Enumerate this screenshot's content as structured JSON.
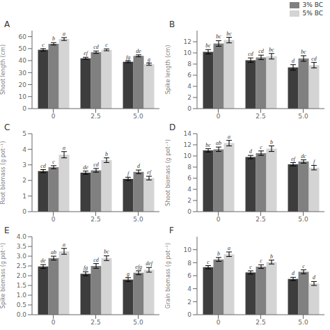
{
  "chart_data": [
    {
      "type": "bar",
      "title": "A",
      "y_label": "Shoot length (cm)",
      "categories": [
        "0",
        "2.5",
        "5.0"
      ],
      "ylim": [
        0,
        65
      ],
      "yticks": [
        0,
        10,
        20,
        30,
        40,
        50,
        60
      ],
      "grid": false,
      "legend": false,
      "series": [
        {
          "color": "#3d3d3d",
          "values": [
            49,
            42,
            39
          ],
          "errors": [
            1.0,
            0.8,
            0.7
          ],
          "annotations": [
            "c",
            "ef",
            "fg"
          ]
        },
        {
          "name": "3% BC",
          "color": "#808080",
          "values": [
            54,
            47,
            44
          ],
          "errors": [
            1.0,
            1.0,
            0.8
          ],
          "annotations": [
            "b",
            "cd",
            "de"
          ]
        },
        {
          "name": "5% BC",
          "color": "#d4d4d4",
          "values": [
            58,
            49,
            37
          ],
          "errors": [
            1.2,
            0.8,
            0.9
          ],
          "annotations": [
            "a",
            "c",
            "g"
          ]
        }
      ]
    },
    {
      "type": "bar",
      "title": "B",
      "y_label": "Spike length (cm)",
      "categories": [
        "0",
        "2.5",
        "5.0"
      ],
      "ylim": [
        0,
        14
      ],
      "yticks": [
        0,
        2,
        4,
        6,
        8,
        10,
        12
      ],
      "grid": false,
      "legend": "upper right",
      "series": [
        {
          "color": "#3d3d3d",
          "values": [
            10.2,
            8.7,
            7.4
          ],
          "errors": [
            0.4,
            0.4,
            0.5
          ],
          "annotations": [
            "bc",
            "cd",
            "d"
          ]
        },
        {
          "name": "3% BC",
          "color": "#808080",
          "values": [
            11.7,
            9.2,
            9.0
          ],
          "errors": [
            0.5,
            0.4,
            0.5
          ],
          "annotations": [
            "bc",
            "cd",
            "bc"
          ]
        },
        {
          "name": "5% BC",
          "color": "#d4d4d4",
          "values": [
            12.3,
            9.4,
            7.8
          ],
          "errors": [
            0.5,
            0.5,
            0.5
          ],
          "annotations": [
            "bc",
            "bc",
            "cd"
          ]
        }
      ]
    },
    {
      "type": "bar",
      "title": "C",
      "y_label": "Root biomass (g pot⁻¹)",
      "categories": [
        "0",
        "2.5",
        "5.0"
      ],
      "ylim": [
        0,
        5
      ],
      "yticks": [
        0,
        1,
        2,
        3,
        4,
        5
      ],
      "grid": false,
      "legend": false,
      "series": [
        {
          "color": "#3d3d3d",
          "values": [
            2.6,
            2.5,
            2.1
          ],
          "errors": [
            0.1,
            0.1,
            0.1
          ],
          "annotations": [
            "cd",
            "de",
            "f"
          ]
        },
        {
          "name": "3% BC",
          "color": "#808080",
          "values": [
            2.85,
            2.65,
            2.55
          ],
          "errors": [
            0.1,
            0.12,
            0.12
          ],
          "annotations": [
            "c",
            "cd",
            "d"
          ]
        },
        {
          "name": "5% BC",
          "color": "#d4d4d4",
          "values": [
            3.65,
            3.3,
            2.15
          ],
          "errors": [
            0.2,
            0.15,
            0.12
          ],
          "annotations": [
            "a",
            "b",
            "ef"
          ]
        }
      ]
    },
    {
      "type": "bar",
      "title": "D",
      "y_label": "Shoot biomass (g pot⁻¹)",
      "categories": [
        "0",
        "2.5",
        "5.0"
      ],
      "ylim": [
        0,
        14
      ],
      "yticks": [
        0,
        2,
        4,
        6,
        8,
        10,
        12,
        14
      ],
      "grid": false,
      "legend": false,
      "series": [
        {
          "color": "#3d3d3d",
          "values": [
            11.0,
            9.8,
            8.5
          ],
          "errors": [
            0.3,
            0.3,
            0.3
          ],
          "annotations": [
            "bc",
            "d",
            "ef"
          ]
        },
        {
          "name": "3% BC",
          "color": "#808080",
          "values": [
            11.2,
            10.5,
            9.0
          ],
          "errors": [
            0.4,
            0.4,
            0.3
          ],
          "annotations": [
            "ab",
            "c",
            "dc"
          ]
        },
        {
          "name": "5% BC",
          "color": "#d4d4d4",
          "values": [
            12.3,
            11.3,
            7.9
          ],
          "errors": [
            0.5,
            0.5,
            0.4
          ],
          "annotations": [
            "a",
            "b",
            "f"
          ]
        }
      ]
    },
    {
      "type": "bar",
      "title": "E",
      "y_label": "Spike biomass (g pot⁻¹)",
      "categories": [
        "0",
        "2.5",
        "5.0"
      ],
      "ylim": [
        0,
        4.0
      ],
      "yticks": [
        {
          "value": 0.0,
          "label": "0.0"
        },
        0.5,
        {
          "value": 1.0,
          "label": "1.0"
        },
        1.5,
        {
          "value": 2.0,
          "label": "2.0"
        },
        2.5,
        {
          "value": 3.0,
          "label": "3.0"
        },
        3.5,
        {
          "value": 4.0,
          "label": "4.0"
        }
      ],
      "grid": false,
      "legend": false,
      "series": [
        {
          "color": "#3d3d3d",
          "values": [
            2.47,
            2.1,
            1.8
          ],
          "errors": [
            0.1,
            0.1,
            0.1
          ],
          "annotations": [
            "de",
            "fg",
            "g"
          ]
        },
        {
          "name": "3% BC",
          "color": "#808080",
          "values": [
            2.9,
            2.5,
            2.15
          ],
          "errors": [
            0.1,
            0.12,
            0.1
          ],
          "annotations": [
            "ab",
            "cd",
            "efg"
          ]
        },
        {
          "name": "5% BC",
          "color": "#d4d4d4",
          "values": [
            3.25,
            2.9,
            2.3
          ],
          "errors": [
            0.15,
            0.12,
            0.12
          ],
          "annotations": [
            "a",
            "bc",
            "def"
          ]
        }
      ]
    },
    {
      "type": "bar",
      "title": "F",
      "y_label": "Grain biomass (g pot⁻¹)",
      "categories": [
        "0",
        "2.5",
        "5.0"
      ],
      "ylim": [
        0,
        12
      ],
      "yticks": [
        0,
        2,
        4,
        6,
        8,
        10
      ],
      "grid": false,
      "legend": false,
      "series": [
        {
          "color": "#3d3d3d",
          "values": [
            7.3,
            6.5,
            5.5
          ],
          "errors": [
            0.25,
            0.25,
            0.25
          ],
          "annotations": [
            "c",
            "c",
            "d"
          ]
        },
        {
          "name": "3% BC",
          "color": "#808080",
          "values": [
            8.5,
            7.4,
            6.6
          ],
          "errors": [
            0.3,
            0.28,
            0.3
          ],
          "annotations": [
            "b",
            "c",
            "c"
          ]
        },
        {
          "name": "5% BC",
          "color": "#d4d4d4",
          "values": [
            9.3,
            8.1,
            4.8
          ],
          "errors": [
            0.35,
            0.3,
            0.3
          ],
          "annotations": [
            "a",
            "b",
            "d"
          ]
        }
      ]
    }
  ]
}
